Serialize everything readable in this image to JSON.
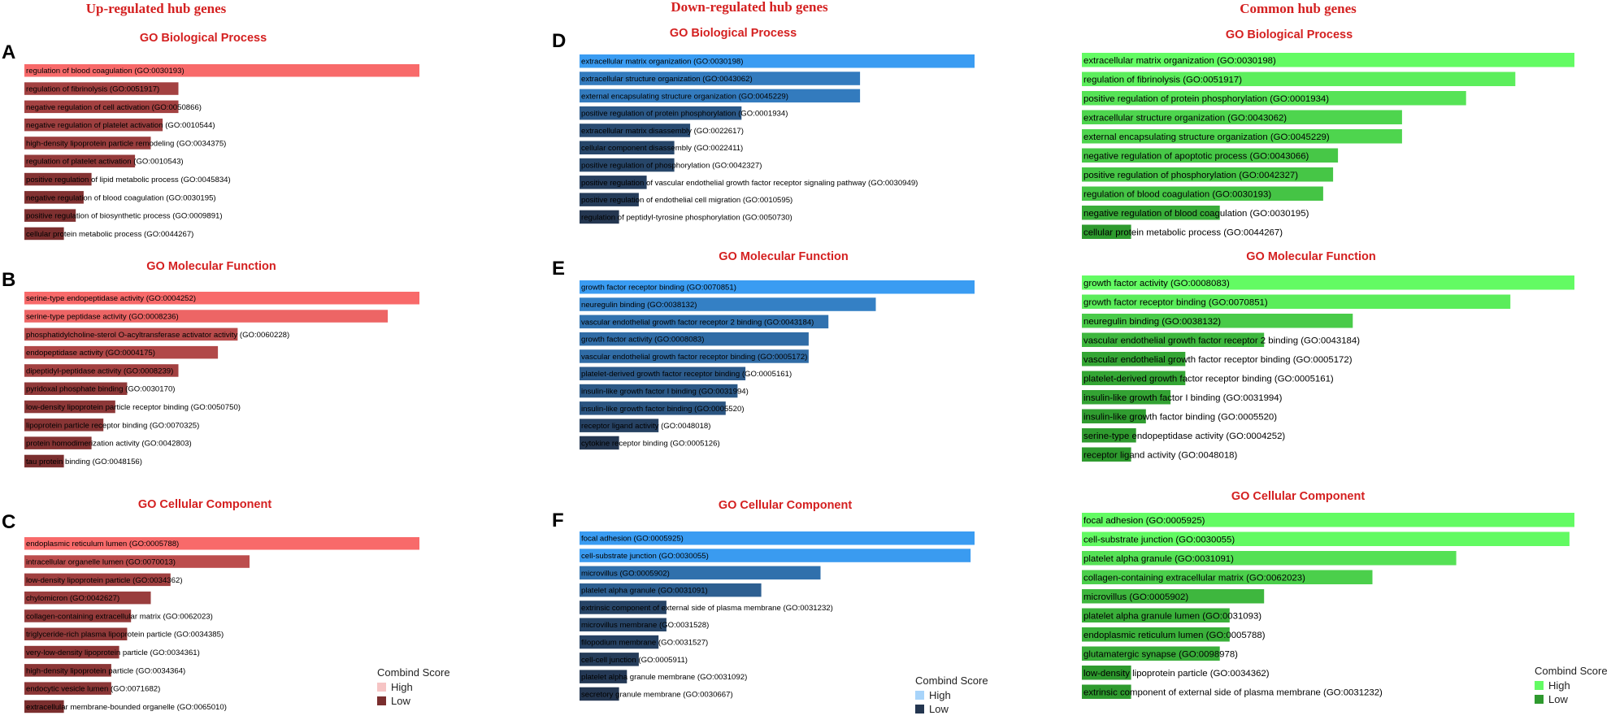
{
  "colors": {
    "title_red": "#d42020",
    "up_high": "#f86a6a",
    "up_low": "#7a2e2e",
    "down_high": "#3a9cf2",
    "down_low": "#243650",
    "common_high": "#63fb63",
    "common_low": "#2e9a2e"
  },
  "columns": [
    {
      "title": "Up-regulated hub genes",
      "scheme": "up",
      "legend": {
        "title": "Combind Score",
        "high": "High",
        "low": "Low"
      },
      "panels": [
        {
          "letter": "A",
          "title": "GO Biological Process",
          "chart_data": {
            "type": "bar",
            "orientation": "horizontal",
            "title": "GO Biological Process",
            "categories": [
              "regulation of blood coagulation (GO:0030193)",
              "regulation of fibrinolysis (GO:0051917)",
              "negative regulation of cell activation (GO:0050866)",
              "negative regulation of platelet activation (GO:0010544)",
              "high-density lipoprotein particle remodeling (GO:0034375)",
              "regulation of platelet activation (GO:0010543)",
              "positive regulation of lipid metabolic process (GO:0045834)",
              "negative regulation of blood coagulation (GO:0030195)",
              "positive regulation of biosynthetic process (GO:0009891)",
              "cellular protein metabolic process (GO:0044267)"
            ],
            "values": [
              100,
              39,
              39,
              35,
              32,
              28,
              17,
              15,
              13,
              10
            ]
          }
        },
        {
          "letter": "B",
          "title": "GO Molecular Function",
          "chart_data": {
            "type": "bar",
            "orientation": "horizontal",
            "title": "GO Molecular Function",
            "categories": [
              "serine-type endopeptidase activity (GO:0004252)",
              "serine-type peptidase activity (GO:0008236)",
              "phosphatidylcholine-sterol O-acyltransferase activator activity (GO:0060228)",
              "endopeptidase activity (GO:0004175)",
              "dipeptidyl-peptidase activity (GO:0008239)",
              "pyridoxal phosphate binding (GO:0030170)",
              "low-density lipoprotein particle receptor binding (GO:0050750)",
              "lipoprotein particle receptor binding (GO:0070325)",
              "protein homodimerization activity (GO:0042803)",
              "tau protein binding (GO:0048156)"
            ],
            "values": [
              100,
              92,
              54,
              49,
              39,
              26,
              23,
              20,
              17,
              10
            ]
          }
        },
        {
          "letter": "C",
          "title": "GO Cellular Component",
          "chart_data": {
            "type": "bar",
            "orientation": "horizontal",
            "title": "GO Cellular Component",
            "categories": [
              "endoplasmic reticulum lumen (GO:0005788)",
              "intracellular organelle lumen (GO:0070013)",
              "low-density lipoprotein particle (GO:0034362)",
              "chylomicron (GO:0042627)",
              "collagen-containing extracellular matrix (GO:0062023)",
              "triglyceride-rich plasma lipoprotein particle (GO:0034385)",
              "very-low-density lipoprotein particle (GO:0034361)",
              "high-density lipoprotein particle (GO:0034364)",
              "endocytic vesicle lumen (GO:0071682)",
              "extracellular membrane-bounded organelle (GO:0065010)"
            ],
            "values": [
              100,
              57,
              37,
              32,
              27,
              26,
              24,
              22,
              22,
              10
            ]
          }
        }
      ]
    },
    {
      "title": "Down-regulated hub genes",
      "scheme": "down",
      "legend": {
        "title": "Combind Score",
        "high": "High",
        "low": "Low"
      },
      "panels": [
        {
          "letter": "D",
          "title": "GO Biological Process",
          "chart_data": {
            "type": "bar",
            "orientation": "horizontal",
            "title": "GO Biological Process",
            "categories": [
              "extracellular matrix organization (GO:0030198)",
              "extracellular structure organization (GO:0043062)",
              "external encapsulating structure organization (GO:0045229)",
              "positive regulation of protein phosphorylation (GO:0001934)",
              "extracellular matrix disassembly (GO:0022617)",
              "cellular component disassembly (GO:0022411)",
              "positive regulation of phosphorylation (GO:0042327)",
              "positive regulation of vascular endothelial growth factor receptor signaling pathway (GO:0030949)",
              "positive regulation of endothelial cell migration (GO:0010595)",
              "regulation of peptidyl-tyrosine phosphorylation (GO:0050730)"
            ],
            "values": [
              100,
              71,
              71,
              41,
              28,
              24,
              24,
              17,
              15,
              10
            ]
          }
        },
        {
          "letter": "E",
          "title": "GO Molecular Function",
          "chart_data": {
            "type": "bar",
            "orientation": "horizontal",
            "title": "GO Molecular Function",
            "categories": [
              "growth factor receptor binding (GO:0070851)",
              "neuregulin binding (GO:0038132)",
              "vascular endothelial growth factor receptor 2 binding (GO:0043184)",
              "growth factor activity (GO:0008083)",
              "vascular endothelial growth factor receptor binding (GO:0005172)",
              "platelet-derived growth factor receptor binding (GO:0005161)",
              "insulin-like growth factor I binding (GO:0031994)",
              "insulin-like growth factor binding (GO:0005520)",
              "receptor ligand activity (GO:0048018)",
              "cytokine receptor binding (GO:0005126)"
            ],
            "values": [
              100,
              75,
              63,
              58,
              58,
              42,
              40,
              37,
              20,
              10
            ]
          }
        },
        {
          "letter": "F",
          "title": "GO Cellular Component",
          "chart_data": {
            "type": "bar",
            "orientation": "horizontal",
            "title": "GO Cellular Component",
            "categories": [
              "focal adhesion (GO:0005925)",
              "cell-substrate junction (GO:0030055)",
              "microvillus (GO:0005902)",
              "platelet alpha granule (GO:0031091)",
              "extrinsic component of external side of plasma membrane (GO:0031232)",
              "microvillus membrane (GO:0031528)",
              "filopodium membrane (GO:0031527)",
              "cell-cell junction (GO:0005911)",
              "platelet alpha granule membrane (GO:0031092)",
              "secretory granule membrane (GO:0030667)"
            ],
            "values": [
              100,
              99,
              61,
              46,
              22,
              22,
              20,
              15,
              12,
              10
            ]
          }
        }
      ]
    },
    {
      "title": "Common hub genes",
      "scheme": "common",
      "legend": {
        "title": "Combind Score",
        "high": "High",
        "low": "Low"
      },
      "panels": [
        {
          "letter": "",
          "title": "GO Biological Process",
          "chart_data": {
            "type": "bar",
            "orientation": "horizontal",
            "title": "GO Biological Process",
            "categories": [
              "extracellular matrix organization (GO:0030198)",
              "regulation of fibrinolysis (GO:0051917)",
              "positive regulation of protein phosphorylation (GO:0001934)",
              "extracellular structure organization (GO:0043062)",
              "external encapsulating structure organization (GO:0045229)",
              "negative regulation of apoptotic process (GO:0043066)",
              "positive regulation of phosphorylation (GO:0042327)",
              "regulation of blood coagulation (GO:0030193)",
              "negative regulation of blood coagulation (GO:0030195)",
              "cellular protein metabolic process (GO:0044267)"
            ],
            "values": [
              100,
              88,
              78,
              65,
              65,
              52,
              51,
              49,
              28,
              10
            ]
          }
        },
        {
          "letter": "",
          "title": "GO Molecular Function",
          "chart_data": {
            "type": "bar",
            "orientation": "horizontal",
            "title": "GO Molecular Function",
            "categories": [
              "growth factor activity (GO:0008083)",
              "growth factor receptor binding (GO:0070851)",
              "neuregulin binding (GO:0038132)",
              "vascular endothelial growth factor receptor 2 binding (GO:0043184)",
              "vascular endothelial growth factor receptor binding (GO:0005172)",
              "platelet-derived growth factor receptor binding (GO:0005161)",
              "insulin-like growth factor I binding (GO:0031994)",
              "insulin-like growth factor binding (GO:0005520)",
              "serine-type endopeptidase activity (GO:0004252)",
              "receptor ligand activity (GO:0048018)"
            ],
            "values": [
              100,
              87,
              55,
              37,
              21,
              21,
              18,
              13,
              11,
              10
            ]
          }
        },
        {
          "letter": "",
          "title": "GO Cellular Component",
          "chart_data": {
            "type": "bar",
            "orientation": "horizontal",
            "title": "GO Cellular Component",
            "categories": [
              "focal adhesion (GO:0005925)",
              "cell-substrate junction (GO:0030055)",
              "platelet alpha granule (GO:0031091)",
              "collagen-containing extracellular matrix (GO:0062023)",
              "microvillus (GO:0005902)",
              "platelet alpha granule lumen (GO:0031093)",
              "endoplasmic reticulum lumen (GO:0005788)",
              "glutamatergic synapse (GO:0098978)",
              "low-density lipoprotein particle (GO:0034362)",
              "extrinsic component of external side of plasma membrane (GO:0031232)"
            ],
            "values": [
              100,
              99,
              76,
              59,
              37,
              30,
              30,
              28,
              10,
              10
            ]
          }
        }
      ]
    }
  ]
}
